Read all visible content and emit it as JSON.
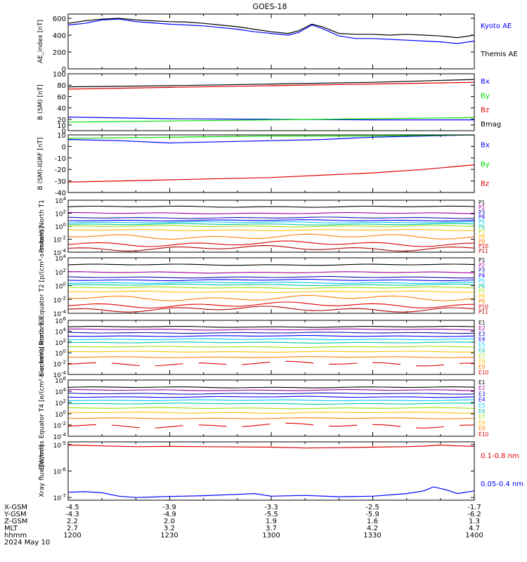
{
  "title": "GOES-18",
  "colors": {
    "black": "#000000",
    "blue": "#0000ff",
    "green": "#00e000",
    "red": "#e00000",
    "dark_red": "#b00000",
    "purple": "#a000a0",
    "navy": "#1010b0",
    "cyan": "#00c8ff",
    "teal": "#00c8a0",
    "lime": "#a0e000",
    "yellow": "#f0e000",
    "gold": "#ffc000",
    "orange": "#ff8000"
  },
  "chart_data": [
    {
      "type": "line",
      "ylabel": "AE_index [nT]",
      "ylim": [
        0,
        650
      ],
      "yticks": [
        "0",
        "200",
        "400",
        "600"
      ],
      "series": [
        {
          "name": "Kyoto AE",
          "color": "blue",
          "x": [
            1200,
            1205,
            1210,
            1215,
            1220,
            1225,
            1230,
            1235,
            1240,
            1245,
            1250,
            1255,
            1300,
            1305,
            1308,
            1312,
            1315,
            1320,
            1325,
            1330,
            1335,
            1340,
            1345,
            1350,
            1355,
            1400
          ],
          "y": [
            520,
            540,
            580,
            590,
            560,
            545,
            530,
            520,
            510,
            490,
            470,
            440,
            420,
            400,
            430,
            520,
            480,
            390,
            360,
            360,
            350,
            340,
            330,
            320,
            300,
            330
          ]
        },
        {
          "name": "Themis AE",
          "color": "black",
          "x": [
            1200,
            1205,
            1210,
            1215,
            1220,
            1225,
            1230,
            1235,
            1240,
            1245,
            1250,
            1255,
            1300,
            1305,
            1308,
            1312,
            1315,
            1320,
            1325,
            1330,
            1335,
            1340,
            1345,
            1350,
            1355,
            1400
          ],
          "y": [
            540,
            570,
            590,
            600,
            580,
            570,
            560,
            555,
            540,
            520,
            500,
            470,
            440,
            420,
            450,
            530,
            500,
            420,
            410,
            410,
            400,
            410,
            400,
            390,
            370,
            400
          ]
        }
      ]
    },
    {
      "type": "line",
      "ylabel": "B (SM) [nT]",
      "ylim": [
        0,
        100
      ],
      "yticks": [
        "0",
        "10",
        "20",
        "40",
        "60",
        "80",
        "100"
      ],
      "series": [
        {
          "name": "Bx",
          "color": "blue",
          "x": [
            1200,
            1230,
            1300,
            1330,
            1400
          ],
          "y": [
            24,
            21,
            20,
            19,
            19
          ]
        },
        {
          "name": "By",
          "color": "green",
          "x": [
            1200,
            1230,
            1300,
            1330,
            1400
          ],
          "y": [
            15,
            17,
            19,
            21,
            23
          ]
        },
        {
          "name": "Bz",
          "color": "red",
          "x": [
            1200,
            1230,
            1300,
            1330,
            1400
          ],
          "y": [
            73,
            76,
            79,
            82,
            85
          ]
        },
        {
          "name": "Bmag",
          "color": "black",
          "x": [
            1200,
            1230,
            1300,
            1330,
            1400
          ],
          "y": [
            77,
            79,
            82,
            85,
            90
          ]
        }
      ]
    },
    {
      "type": "line",
      "ylabel": "B (SM)-IGRF [nT]",
      "ylim": [
        -40,
        10
      ],
      "yticks": [
        "-40",
        "-30",
        "-20",
        "-10",
        "0",
        "10"
      ],
      "series": [
        {
          "name": "Bx",
          "color": "blue",
          "x": [
            1200,
            1215,
            1230,
            1245,
            1300,
            1315,
            1330,
            1345,
            1400
          ],
          "y": [
            6,
            5,
            3,
            4,
            5,
            6,
            8,
            9,
            10
          ]
        },
        {
          "name": "By",
          "color": "green",
          "x": [
            1200,
            1230,
            1300,
            1330,
            1400
          ],
          "y": [
            7,
            8,
            9,
            9,
            10
          ]
        },
        {
          "name": "Bz",
          "color": "red",
          "x": [
            1200,
            1215,
            1230,
            1245,
            1300,
            1315,
            1330,
            1345,
            1400
          ],
          "y": [
            -31,
            -30,
            -29,
            -28,
            -27,
            -25,
            -23,
            -20,
            -16
          ]
        }
      ]
    },
    {
      "type": "line",
      "ylabel": "Protons North T1",
      "log": true,
      "ylim": [
        -4,
        4
      ],
      "yticks": [
        "10^-4",
        "10^-2",
        "10^0",
        "10^2",
        "10^4"
      ],
      "series_names": [
        "P1",
        "P2",
        "P3",
        "P4",
        "P5",
        "P6",
        "P7",
        "P8",
        "P9",
        "P10",
        "P11"
      ],
      "log_levels": [
        3.0,
        2.0,
        1.3,
        0.9,
        0.6,
        0.3,
        0.0,
        -0.6,
        -1.6,
        -2.7,
        -3.4
      ],
      "series_colors": [
        "black",
        "purple",
        "navy",
        "blue",
        "cyan",
        "teal",
        "lime",
        "gold",
        "orange",
        "red",
        "dark_red"
      ]
    },
    {
      "type": "line",
      "ylabel": "Protons Equator T2 [p/(cm²-s-sr-keV)]",
      "log": true,
      "ylim": [
        -4,
        4
      ],
      "yticks": [
        "10^-4",
        "10^-2",
        "10^0",
        "10^2",
        "10^4"
      ],
      "series_names": [
        "P1",
        "P2",
        "P3",
        "P4",
        "P5",
        "P6",
        "P7",
        "P8",
        "P9",
        "P10",
        "P11"
      ],
      "log_levels": [
        3.0,
        1.9,
        1.2,
        0.8,
        0.4,
        0.1,
        -0.3,
        -0.9,
        -1.8,
        -2.8,
        -3.4
      ],
      "series_colors": [
        "black",
        "purple",
        "navy",
        "blue",
        "cyan",
        "teal",
        "lime",
        "gold",
        "orange",
        "red",
        "dark_red"
      ]
    },
    {
      "type": "line",
      "ylabel": "Electrons North T3",
      "log": true,
      "ylim": [
        -4,
        6
      ],
      "yticks": [
        "10^-4",
        "10^-2",
        "10^0",
        "10^2",
        "10^4",
        "10^6"
      ],
      "series_names": [
        "E1",
        "E2",
        "E3",
        "E4",
        "E5",
        "E6",
        "E7",
        "E8",
        "E9",
        "E10"
      ],
      "log_levels": [
        4.8,
        4.3,
        3.7,
        3.1,
        2.5,
        1.9,
        1.1,
        0.2,
        -0.8,
        -2.0
      ],
      "series_colors": [
        "black",
        "purple",
        "navy",
        "blue",
        "cyan",
        "teal",
        "lime",
        "gold",
        "orange",
        "red"
      ]
    },
    {
      "type": "line",
      "ylabel": "Electrons Equator T4 [e/(cm²-s-sr-keV)]",
      "log": true,
      "ylim": [
        -4,
        6
      ],
      "yticks": [
        "10^-4",
        "10^-2",
        "10^0",
        "10^2",
        "10^4",
        "10^6"
      ],
      "series_names": [
        "E1",
        "E2",
        "E3",
        "E4",
        "E5",
        "E6",
        "E7",
        "E8",
        "E9",
        "E10"
      ],
      "log_levels": [
        4.7,
        4.2,
        3.6,
        3.0,
        2.4,
        1.8,
        1.0,
        0.2,
        -0.8,
        -2.1
      ],
      "series_colors": [
        "black",
        "purple",
        "navy",
        "blue",
        "cyan",
        "teal",
        "lime",
        "gold",
        "orange",
        "red"
      ]
    },
    {
      "type": "line",
      "ylabel": "Xray flux [W/m²]",
      "log": true,
      "ylim": [
        -7.1,
        -4.9
      ],
      "yticks": [
        "10^-7",
        "10^-6",
        "10^-5"
      ],
      "series": [
        {
          "name": "0.1-0.8 nm",
          "color": "red",
          "x": [
            1200,
            1210,
            1220,
            1230,
            1240,
            1250,
            1300,
            1310,
            1320,
            1330,
            1340,
            1345,
            1350,
            1355,
            1400
          ],
          "y": [
            -5.02,
            -5.05,
            -5.08,
            -5.07,
            -5.08,
            -5.09,
            -5.1,
            -5.13,
            -5.12,
            -5.1,
            -5.08,
            -5.06,
            -5.02,
            -5.05,
            -5.07
          ]
        },
        {
          "name": "0.05-0.4 nm",
          "color": "blue",
          "x": [
            1200,
            1205,
            1210,
            1215,
            1220,
            1225,
            1230,
            1240,
            1250,
            1255,
            1300,
            1310,
            1320,
            1330,
            1340,
            1345,
            1348,
            1352,
            1355,
            1400
          ],
          "y": [
            -6.8,
            -6.78,
            -6.82,
            -6.95,
            -7.0,
            -6.98,
            -6.96,
            -6.93,
            -6.88,
            -6.85,
            -6.95,
            -6.92,
            -6.97,
            -6.95,
            -6.85,
            -6.75,
            -6.6,
            -6.72,
            -6.85,
            -6.75
          ]
        }
      ]
    }
  ],
  "time_axis": {
    "row_labels": [
      "X-GSM",
      "Y-GSM",
      "Z-GSM",
      "MLT",
      "hhmm"
    ],
    "ticks": [
      {
        "x_gsm": "-4.5",
        "y_gsm": "-4.3",
        "z_gsm": "2.2",
        "mlt": "2.7",
        "hhmm": "1200"
      },
      {
        "x_gsm": "-3.9",
        "y_gsm": "-4.9",
        "z_gsm": "2.0",
        "mlt": "3.2",
        "hhmm": "1230"
      },
      {
        "x_gsm": "-3.3",
        "y_gsm": "-5.5",
        "z_gsm": "1.9",
        "mlt": "3.7",
        "hhmm": "1300"
      },
      {
        "x_gsm": "-2.5",
        "y_gsm": "-5.9",
        "z_gsm": "1.6",
        "mlt": "4.2",
        "hhmm": "1330"
      },
      {
        "x_gsm": "-1.7",
        "y_gsm": "-6.2",
        "z_gsm": "1.3",
        "mlt": "4.7",
        "hhmm": "1400"
      }
    ],
    "date": "2024 May 10"
  }
}
